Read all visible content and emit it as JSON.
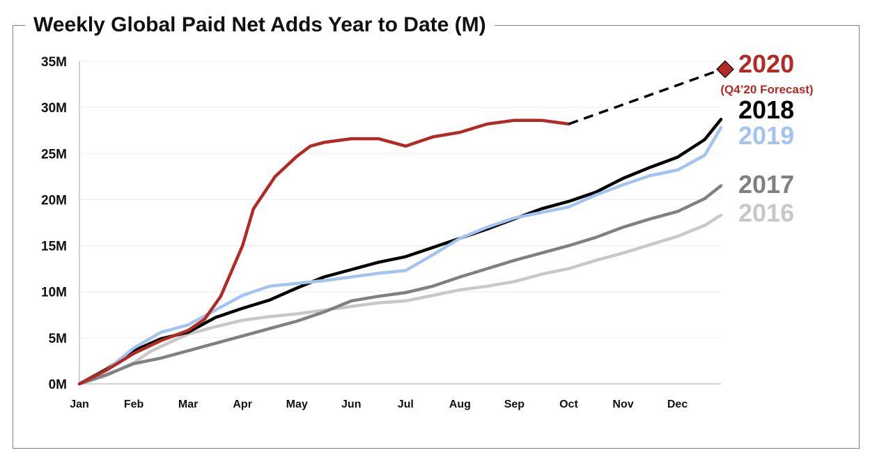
{
  "chart_data": {
    "type": "line",
    "title": "Weekly Global Paid Net Adds Year to Date (M)",
    "xlabel": "",
    "ylabel": "",
    "x_ticks": [
      "Jan",
      "Feb",
      "Mar",
      "Apr",
      "May",
      "Jun",
      "Jul",
      "Aug",
      "Sep",
      "Oct",
      "Nov",
      "Dec"
    ],
    "y_ticks": [
      "0M",
      "5M",
      "10M",
      "15M",
      "20M",
      "25M",
      "30M",
      "35M"
    ],
    "ylim": [
      0,
      35
    ],
    "x_unit": "month (Jan = 0)",
    "grid": "horizontal",
    "legend": "direct labels at right end of lines",
    "series": [
      {
        "name": "2016",
        "color": "#c8c8c8",
        "points": [
          [
            0,
            0
          ],
          [
            0.5,
            0.9
          ],
          [
            1,
            2.3
          ],
          [
            1.3,
            3.5
          ],
          [
            1.7,
            4.6
          ],
          [
            2,
            5.4
          ],
          [
            2.5,
            6.2
          ],
          [
            3,
            6.9
          ],
          [
            3.5,
            7.3
          ],
          [
            4,
            7.6
          ],
          [
            4.5,
            8.0
          ],
          [
            5,
            8.4
          ],
          [
            5.5,
            8.8
          ],
          [
            6,
            9.0
          ],
          [
            6.5,
            9.6
          ],
          [
            7,
            10.2
          ],
          [
            7.5,
            10.6
          ],
          [
            8,
            11.1
          ],
          [
            8.5,
            11.9
          ],
          [
            9,
            12.5
          ],
          [
            9.5,
            13.4
          ],
          [
            10,
            14.2
          ],
          [
            10.5,
            15.1
          ],
          [
            11,
            16.0
          ],
          [
            11.5,
            17.2
          ],
          [
            11.8,
            18.3
          ]
        ]
      },
      {
        "name": "2017",
        "color": "#808080",
        "points": [
          [
            0,
            0
          ],
          [
            0.5,
            1.0
          ],
          [
            1,
            2.2
          ],
          [
            1.5,
            2.8
          ],
          [
            2,
            3.6
          ],
          [
            2.5,
            4.4
          ],
          [
            3,
            5.2
          ],
          [
            3.5,
            6.0
          ],
          [
            4,
            6.8
          ],
          [
            4.5,
            7.8
          ],
          [
            5,
            9.0
          ],
          [
            5.5,
            9.5
          ],
          [
            6,
            9.9
          ],
          [
            6.5,
            10.6
          ],
          [
            7,
            11.6
          ],
          [
            7.5,
            12.5
          ],
          [
            8,
            13.4
          ],
          [
            8.5,
            14.2
          ],
          [
            9,
            15.0
          ],
          [
            9.5,
            15.9
          ],
          [
            10,
            17.0
          ],
          [
            10.5,
            17.9
          ],
          [
            11,
            18.7
          ],
          [
            11.5,
            20.1
          ],
          [
            11.8,
            21.5
          ]
        ]
      },
      {
        "name": "2018",
        "color": "#000000",
        "points": [
          [
            0,
            0
          ],
          [
            0.5,
            1.6
          ],
          [
            1,
            3.6
          ],
          [
            1.5,
            4.9
          ],
          [
            2,
            5.6
          ],
          [
            2.5,
            7.2
          ],
          [
            3,
            8.2
          ],
          [
            3.5,
            9.1
          ],
          [
            4,
            10.4
          ],
          [
            4.5,
            11.6
          ],
          [
            5,
            12.4
          ],
          [
            5.5,
            13.2
          ],
          [
            6,
            13.8
          ],
          [
            6.5,
            14.8
          ],
          [
            7,
            15.8
          ],
          [
            7.5,
            16.8
          ],
          [
            8,
            17.9
          ],
          [
            8.5,
            19.0
          ],
          [
            9,
            19.8
          ],
          [
            9.5,
            20.8
          ],
          [
            10,
            22.3
          ],
          [
            10.5,
            23.5
          ],
          [
            11,
            24.6
          ],
          [
            11.5,
            26.5
          ],
          [
            11.8,
            28.7
          ]
        ]
      },
      {
        "name": "2019",
        "color": "#a3c4f0",
        "points": [
          [
            0,
            0
          ],
          [
            0.5,
            1.5
          ],
          [
            1,
            3.9
          ],
          [
            1.5,
            5.6
          ],
          [
            2,
            6.4
          ],
          [
            2.5,
            8.0
          ],
          [
            3,
            9.6
          ],
          [
            3.5,
            10.6
          ],
          [
            4,
            10.9
          ],
          [
            4.5,
            11.2
          ],
          [
            5,
            11.6
          ],
          [
            5.5,
            12.0
          ],
          [
            6,
            12.3
          ],
          [
            6.5,
            14.0
          ],
          [
            7,
            15.8
          ],
          [
            7.5,
            17.0
          ],
          [
            8,
            18.0
          ],
          [
            8.5,
            18.6
          ],
          [
            9,
            19.2
          ],
          [
            9.5,
            20.5
          ],
          [
            10,
            21.6
          ],
          [
            10.5,
            22.6
          ],
          [
            11,
            23.2
          ],
          [
            11.5,
            24.8
          ],
          [
            11.8,
            27.8
          ]
        ]
      },
      {
        "name": "2020",
        "color": "#b22a23",
        "points": [
          [
            0,
            0
          ],
          [
            0.5,
            1.5
          ],
          [
            1,
            3.3
          ],
          [
            1.5,
            4.7
          ],
          [
            2,
            5.8
          ],
          [
            2.3,
            7.0
          ],
          [
            2.6,
            9.5
          ],
          [
            3,
            15.0
          ],
          [
            3.2,
            19.0
          ],
          [
            3.6,
            22.5
          ],
          [
            4,
            24.7
          ],
          [
            4.25,
            25.8
          ],
          [
            4.5,
            26.2
          ],
          [
            5,
            26.6
          ],
          [
            5.5,
            26.6
          ],
          [
            6,
            25.8
          ],
          [
            6.5,
            26.8
          ],
          [
            7,
            27.3
          ],
          [
            7.5,
            28.2
          ],
          [
            8,
            28.6
          ],
          [
            8.5,
            28.6
          ],
          [
            9,
            28.2
          ]
        ]
      }
    ],
    "forecast": {
      "name": "2020",
      "sublabel": "(Q4’20 Forecast)",
      "color": "#000000",
      "marker_color": "#b22a23",
      "points": [
        [
          9,
          28.2
        ],
        [
          11.8,
          34.1
        ]
      ]
    }
  }
}
